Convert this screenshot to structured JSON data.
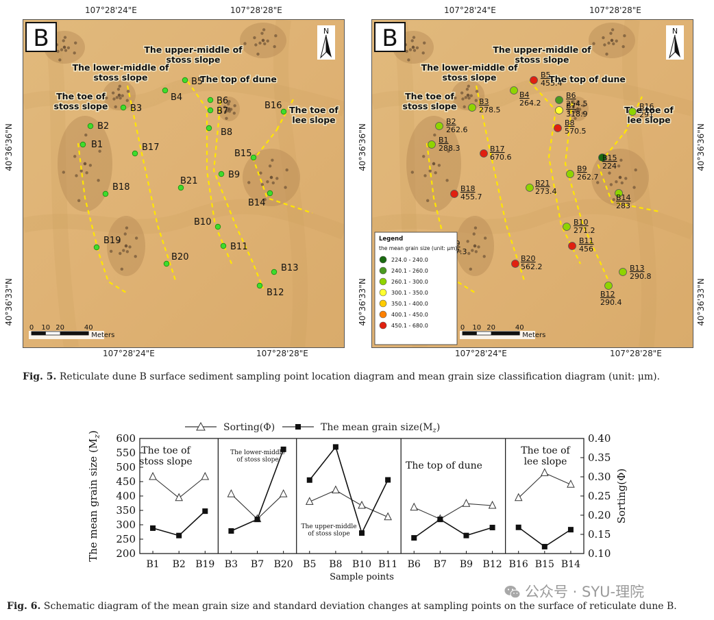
{
  "fig5": {
    "top_lons": [
      "107°28'24\"E",
      "107°28'28\"E"
    ],
    "bottom_lons": [
      "107°28'24\"E",
      "107°28'28\"E"
    ],
    "lats": [
      "40°36'36\"N",
      "40°36'33\"N"
    ],
    "panel_letter": "B",
    "north": "N",
    "scale_ticks": [
      "0",
      "10",
      "20",
      "40"
    ],
    "scale_unit": "Meters",
    "zone_labels": [
      "The toe of\nstoss slope",
      "The lower-middle of\nstoss slope",
      "The upper-middle of\nstoss slope",
      "The top of dune",
      "The toe of\nlee slope"
    ],
    "points": [
      {
        "id": "B1",
        "mz": "288.3",
        "color": "#8fd400"
      },
      {
        "id": "B2",
        "mz": "262.6",
        "color": "#8fd400"
      },
      {
        "id": "B3",
        "mz": "278.5",
        "color": "#8fd400"
      },
      {
        "id": "B4",
        "mz": "264.2",
        "color": "#8fd400"
      },
      {
        "id": "B5",
        "mz": "455.4",
        "color": "#e02010"
      },
      {
        "id": "B6",
        "mz": "254.5",
        "color": "#4a9a20"
      },
      {
        "id": "B7",
        "mz": "318.9",
        "color": "#ffff30"
      },
      {
        "id": "B8",
        "mz": "570.5",
        "color": "#e02010"
      },
      {
        "id": "B9",
        "mz": "262.7",
        "color": "#8fd400"
      },
      {
        "id": "B10",
        "mz": "271.2",
        "color": "#8fd400"
      },
      {
        "id": "B11",
        "mz": "456",
        "color": "#e02010"
      },
      {
        "id": "B12",
        "mz": "290.4",
        "color": "#8fd400"
      },
      {
        "id": "B13",
        "mz": "290.8",
        "color": "#8fd400"
      },
      {
        "id": "B14",
        "mz": "283",
        "color": "#8fd400"
      },
      {
        "id": "B15",
        "mz": "224",
        "color": "#1a6a10"
      },
      {
        "id": "B16",
        "mz": "291",
        "color": "#8fd400"
      },
      {
        "id": "B17",
        "mz": "670.6",
        "color": "#e02010"
      },
      {
        "id": "B18",
        "mz": "455.7",
        "color": "#e02010"
      },
      {
        "id": "B19",
        "mz": "347.3",
        "color": "#ffff30"
      },
      {
        "id": "B20",
        "mz": "562.2",
        "color": "#e02010"
      },
      {
        "id": "B21",
        "mz": "273.4",
        "color": "#8fd400"
      }
    ],
    "legend": {
      "title": "Legend",
      "subtitle": "the mean grain size (unit: μm)",
      "classes": [
        {
          "range": "224.0 - 240.0",
          "color": "#1a6a10"
        },
        {
          "range": "240.1 - 260.0",
          "color": "#4a9a20"
        },
        {
          "range": "260.1 - 300.0",
          "color": "#8fd400"
        },
        {
          "range": "300.1 - 350.0",
          "color": "#ffff30"
        },
        {
          "range": "350.1 - 400.0",
          "color": "#ffcc00"
        },
        {
          "range": "400.1 - 450.0",
          "color": "#ff8000"
        },
        {
          "range": "450.1 - 680.0",
          "color": "#e02010"
        }
      ]
    },
    "caption_label": "Fig. 5.",
    "caption_text": "Reticulate dune B surface sediment sampling point location diagram and mean grain size classification diagram (unit: μm)."
  },
  "fig6": {
    "legend_sorting": "Sorting(Φ)",
    "legend_mz": "The mean grain size(M",
    "legend_mz_sub": "z",
    "legend_mz_end": ")",
    "ylabel_left": "The mean grain size (M",
    "ylabel_left_sub": "z",
    "ylabel_left_end": ")",
    "ylabel_right": "Sorting(Φ)",
    "xlabel": "Sample points",
    "left_ticks": [
      "200",
      "250",
      "300",
      "350",
      "400",
      "450",
      "500",
      "550",
      "600"
    ],
    "right_ticks": [
      "0.10",
      "0.15",
      "0.20",
      "0.25",
      "0.30",
      "0.35",
      "0.40"
    ],
    "group_labels": {
      "toe_stoss": "The toe of\nstoss slope",
      "lower_middle": "The lower-middle\nof stoss slope",
      "upper_middle": "The upper-middle\nof stoss slope",
      "top": "The top of dune",
      "toe_lee": "The toe of\nlee slope"
    },
    "caption_label": "Fig. 6.",
    "caption_text": "Schematic diagram of the mean grain size and standard deviation changes at sampling points on the surface of reticulate dune B."
  },
  "chart_data": {
    "type": "line",
    "categories": [
      "B1",
      "B2",
      "B19",
      "B3",
      "B7",
      "B20",
      "B5",
      "B8",
      "B10",
      "B11",
      "B6",
      "B7",
      "B9",
      "B12",
      "B16",
      "B15",
      "B14"
    ],
    "series": [
      {
        "name": "Sorting(Φ)",
        "axis": "right",
        "marker": "open-triangle",
        "values": [
          0.3,
          0.245,
          0.3,
          0.255,
          0.19,
          0.255,
          0.235,
          0.265,
          0.225,
          0.195,
          0.22,
          0.19,
          0.23,
          0.225,
          0.245,
          0.31,
          0.28
        ]
      },
      {
        "name": "The mean grain size(Mz)",
        "axis": "left",
        "marker": "filled-square",
        "values": [
          288.3,
          262.6,
          347.3,
          278.5,
          318.9,
          562.2,
          455.4,
          570.5,
          271.2,
          456,
          254.5,
          318.9,
          262.7,
          290.4,
          291,
          224,
          283
        ]
      }
    ],
    "ylim": [
      200,
      600
    ],
    "y2lim": [
      0.1,
      0.4
    ],
    "group_breaks_after": [
      2,
      5,
      9,
      13
    ],
    "xlabel": "Sample points",
    "ylabel": "The mean grain size (Mz)",
    "y2label": "Sorting(Φ)",
    "grid": false,
    "legend_position": "top"
  },
  "watermark": "公众号 · SYU-理院"
}
